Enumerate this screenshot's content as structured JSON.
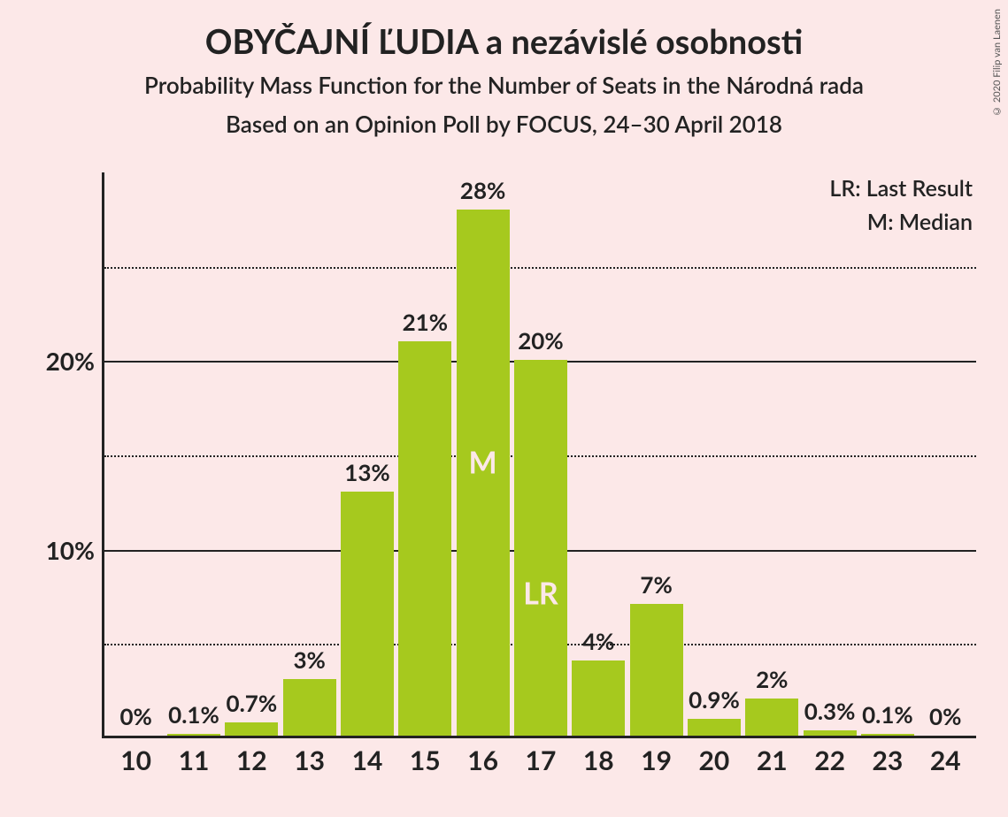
{
  "title": "OBYČAJNÍ ĽUDIA a nezávislé osobnosti",
  "subtitle1": "Probability Mass Function for the Number of Seats in the Národná rada",
  "subtitle2": "Based on an Opinion Poll by FOCUS, 24–30 April 2018",
  "copyright": "© 2020 Filip van Laenen",
  "legend": {
    "lr": "LR: Last Result",
    "m": "M: Median"
  },
  "chart": {
    "type": "bar",
    "bar_color": "#a6c91e",
    "background_color": "#fce8e8",
    "axis_color": "#222222",
    "grid_color": "#222222",
    "marker_text_color": "#fce8e8",
    "ylim": [
      0,
      30
    ],
    "ytick_major": [
      10,
      20
    ],
    "ytick_minor": [
      5,
      15,
      25
    ],
    "ytick_labels": {
      "10": "10%",
      "20": "20%"
    },
    "categories": [
      "10",
      "11",
      "12",
      "13",
      "14",
      "15",
      "16",
      "17",
      "18",
      "19",
      "20",
      "21",
      "22",
      "23",
      "24"
    ],
    "values": [
      0,
      0.1,
      0.7,
      3,
      13,
      21,
      28,
      20,
      4,
      7,
      0.9,
      2,
      0.3,
      0.1,
      0
    ],
    "value_labels": [
      "0%",
      "0.1%",
      "0.7%",
      "3%",
      "13%",
      "21%",
      "28%",
      "20%",
      "4%",
      "7%",
      "0.9%",
      "2%",
      "0.3%",
      "0.1%",
      "0%"
    ],
    "markers": {
      "16": {
        "label": "M",
        "pos_pct": 48
      },
      "17": {
        "label": "LR",
        "pos_pct": 62
      }
    },
    "title_fontsize": 38,
    "subtitle_fontsize": 26,
    "axis_label_fontsize": 28,
    "bar_label_fontsize": 26,
    "x_label_fontsize": 30,
    "bar_width_ratio": 0.92
  }
}
